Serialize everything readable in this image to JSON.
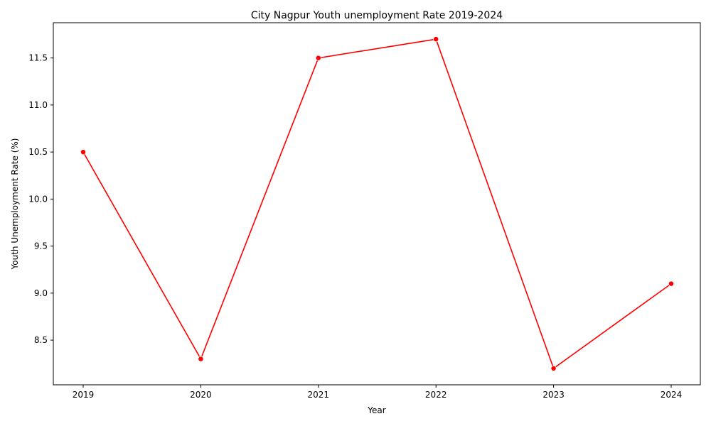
{
  "chart_data": {
    "type": "line",
    "title": "City Nagpur Youth unemployment Rate 2019-2024",
    "xlabel": "Year",
    "ylabel": "Youth Unemployment Rate (%)",
    "x": [
      "2019",
      "2020",
      "2021",
      "2022",
      "2023",
      "2024"
    ],
    "series": [
      {
        "values": [
          10.5,
          8.3,
          11.5,
          11.7,
          8.2,
          9.1
        ],
        "color": "#ff0000"
      }
    ],
    "yticks": [
      "8.5",
      "9.0",
      "9.5",
      "10.0",
      "10.5",
      "11.0",
      "11.5"
    ],
    "ylim": [
      8.025,
      11.875
    ],
    "grid": false,
    "legend": "none"
  }
}
